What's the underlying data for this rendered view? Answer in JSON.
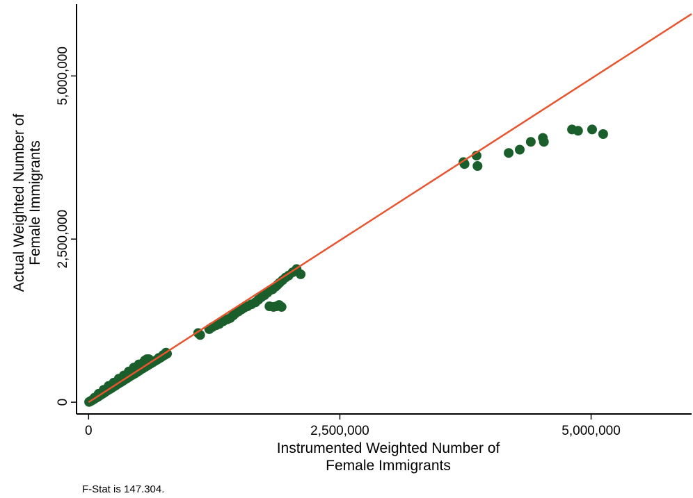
{
  "chart_data": {
    "type": "scatter",
    "xlabel": [
      "Instrumented Weighted Number of",
      "Female Immigrants"
    ],
    "ylabel": [
      "Actual Weighted Number of",
      "Female Immigrants"
    ],
    "xticks": [
      0,
      2500000,
      5000000
    ],
    "xtick_labels": [
      "0",
      "2,500,000",
      "5,000,000"
    ],
    "yticks": [
      0,
      2500000,
      5000000
    ],
    "ytick_labels": [
      "0",
      "2,500,000",
      "5,000,000"
    ],
    "xlim": [
      -120000,
      6000000
    ],
    "ylim": [
      -180000,
      6100000
    ],
    "grid": false,
    "note": "F-Stat is 147.304.",
    "colors": {
      "points": "#1a5e2c",
      "fit_line": "#e8542e",
      "axis": "#000000"
    },
    "series": [
      {
        "kind": "points",
        "x": [
          5000,
          12000,
          20000,
          28000,
          35000,
          42000,
          50000,
          58000,
          65000,
          72000,
          80000,
          88000,
          95000,
          105000,
          115000,
          125000,
          135000,
          145000,
          155000,
          165000,
          180000,
          195000,
          210000,
          225000,
          240000,
          255000,
          270000,
          285000,
          300000,
          320000,
          340000,
          360000,
          380000,
          400000,
          420000,
          440000,
          460000,
          480000,
          500000,
          520000,
          540000,
          560000,
          580000,
          600000,
          620000,
          640000,
          660000,
          680000,
          700000,
          720000,
          740000,
          760000,
          780000,
          540000,
          560000,
          580000,
          600000,
          620000,
          650000,
          700000,
          740000,
          770000,
          60000,
          100000,
          150000,
          200000,
          250000,
          300000,
          350000,
          400000,
          450000,
          500000,
          1090000,
          1110000,
          1200000,
          1230000,
          1270000,
          1300000,
          1340000,
          1380000,
          1410000,
          1440000,
          1460000,
          1490000,
          1520000,
          1550000,
          1580000,
          1620000,
          1660000,
          1690000,
          1720000,
          1750000,
          1780000,
          1810000,
          1830000,
          1860000,
          1880000,
          1900000,
          1930000,
          1960000,
          1990000,
          2030000,
          2070000,
          2110000,
          1800000,
          1840000,
          1870000,
          1895000,
          1920000,
          3730000,
          3740000,
          3860000,
          3870000,
          4180000,
          4290000,
          4400000,
          4520000,
          4530000,
          4810000,
          4870000,
          5010000,
          5120000
        ],
        "y": [
          4000,
          10000,
          17000,
          25000,
          30000,
          38000,
          45000,
          52000,
          58000,
          66000,
          72000,
          80000,
          86000,
          96000,
          106000,
          118000,
          126000,
          136000,
          146000,
          156000,
          172000,
          186000,
          200000,
          214000,
          230000,
          244000,
          258000,
          274000,
          288000,
          306000,
          326000,
          346000,
          364000,
          384000,
          404000,
          422000,
          440000,
          460000,
          480000,
          500000,
          518000,
          538000,
          556000,
          576000,
          594000,
          612000,
          632000,
          650000,
          668000,
          688000,
          708000,
          726000,
          744000,
          600000,
          640000,
          660000,
          660000,
          610000,
          625000,
          680000,
          720000,
          760000,
          70000,
          130000,
          190000,
          250000,
          300000,
          360000,
          410000,
          470000,
          530000,
          580000,
          1060000,
          1030000,
          1120000,
          1150000,
          1180000,
          1200000,
          1240000,
          1270000,
          1290000,
          1330000,
          1360000,
          1390000,
          1420000,
          1450000,
          1470000,
          1500000,
          1530000,
          1570000,
          1610000,
          1640000,
          1680000,
          1720000,
          1730000,
          1770000,
          1800000,
          1830000,
          1870000,
          1910000,
          1940000,
          1990000,
          2040000,
          1960000,
          1470000,
          1460000,
          1470000,
          1490000,
          1460000,
          3680000,
          3650000,
          3780000,
          3620000,
          3820000,
          3870000,
          3990000,
          4050000,
          3990000,
          4180000,
          4160000,
          4180000,
          4110000
        ]
      },
      {
        "kind": "fit_line",
        "x": [
          0,
          6000000
        ],
        "y": [
          0,
          5950000
        ]
      }
    ]
  }
}
